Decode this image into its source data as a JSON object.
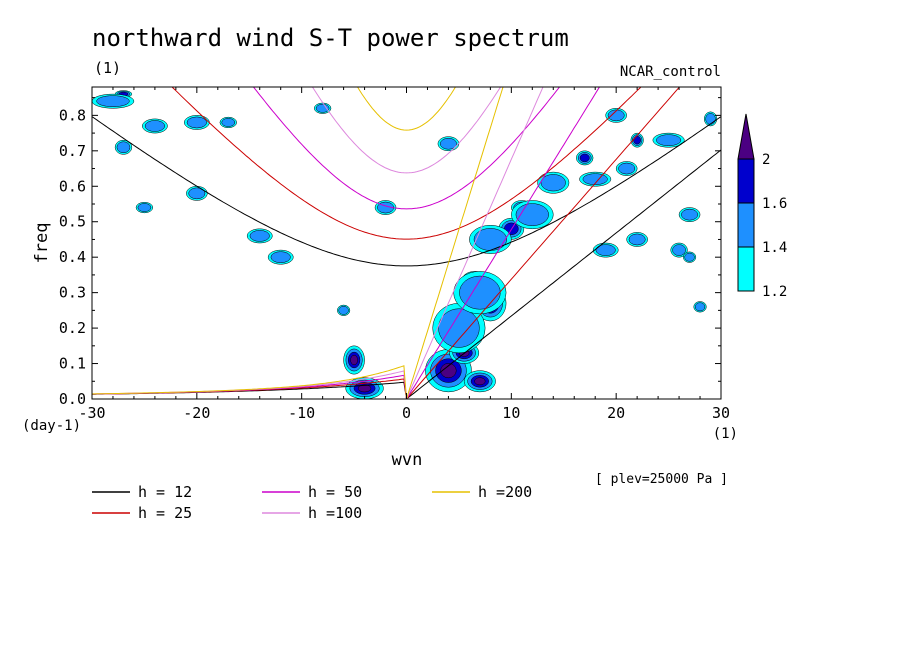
{
  "chart_data": {
    "type": "contour",
    "title": "northward wind S-T power spectrum",
    "subtitle_left": "(1)",
    "subtitle_right": "NCAR_control",
    "xlabel": "wvn",
    "ylabel": "freq",
    "x_units": "(1)",
    "y_units": "(day-1)",
    "xlim": [
      -30,
      30
    ],
    "ylim": [
      0,
      0.88
    ],
    "x_ticks": [
      -30,
      -20,
      -10,
      0,
      10,
      20,
      30
    ],
    "x_tick_labels": [
      "-30",
      "-20",
      "-10",
      "0",
      "10",
      "20",
      "30"
    ],
    "y_ticks": [
      0,
      0.1,
      0.2,
      0.3,
      0.4,
      0.5,
      0.6,
      0.7,
      0.8
    ],
    "y_tick_labels": [
      "0.0",
      "0.1",
      "0.2",
      "0.3",
      "0.4",
      "0.5",
      "0.6",
      "0.7",
      "0.8"
    ],
    "annotation": "[ plev=25000 Pa ]",
    "colorbar": {
      "levels": [
        1.2,
        1.4,
        1.6,
        2
      ],
      "labels": [
        "1.2",
        "1.4",
        "1.6",
        "2"
      ],
      "colors": [
        "#00ffff",
        "#1e90ff",
        "#0000cd",
        "#4b0082"
      ]
    },
    "dispersion_curves": [
      {
        "name": "h = 12",
        "h": 12,
        "color": "#000000"
      },
      {
        "name": "h = 25",
        "h": 25,
        "color": "#cc0000"
      },
      {
        "name": "h = 50",
        "h": 50,
        "color": "#cc00cc"
      },
      {
        "name": "h =100",
        "h": 100,
        "color": "#dd88dd"
      },
      {
        "name": "h =200",
        "h": 200,
        "color": "#e6c000"
      }
    ],
    "contour_blobs": [
      {
        "x": -5,
        "y": 0.11,
        "rx": 1.0,
        "ry": 0.04,
        "level": 3
      },
      {
        "x": -4,
        "y": 0.03,
        "rx": 1.8,
        "ry": 0.03,
        "level": 3
      },
      {
        "x": 4,
        "y": 0.08,
        "rx": 2.2,
        "ry": 0.06,
        "level": 3
      },
      {
        "x": 5.5,
        "y": 0.13,
        "rx": 1.4,
        "ry": 0.03,
        "level": 3
      },
      {
        "x": 7,
        "y": 0.05,
        "rx": 1.5,
        "ry": 0.03,
        "level": 3
      },
      {
        "x": 5.5,
        "y": 0.21,
        "rx": 1.3,
        "ry": 0.05,
        "level": 3
      },
      {
        "x": 8,
        "y": 0.27,
        "rx": 1.5,
        "ry": 0.05,
        "level": 3
      },
      {
        "x": 6.5,
        "y": 0.33,
        "rx": 1.3,
        "ry": 0.03,
        "level": 2
      },
      {
        "x": 10,
        "y": 0.48,
        "rx": 1.2,
        "ry": 0.03,
        "level": 2
      },
      {
        "x": 11,
        "y": 0.54,
        "rx": 1.0,
        "ry": 0.02,
        "level": 2
      },
      {
        "x": 17,
        "y": 0.68,
        "rx": 0.8,
        "ry": 0.02,
        "level": 2
      },
      {
        "x": 22,
        "y": 0.73,
        "rx": 0.6,
        "ry": 0.02,
        "level": 2
      },
      {
        "x": -27,
        "y": 0.86,
        "rx": 0.8,
        "ry": 0.01,
        "level": 2
      },
      {
        "x": 8,
        "y": 0.45,
        "rx": 2.0,
        "ry": 0.04,
        "level": 1
      },
      {
        "x": 12,
        "y": 0.52,
        "rx": 2.0,
        "ry": 0.04,
        "level": 1
      },
      {
        "x": 14,
        "y": 0.61,
        "rx": 1.5,
        "ry": 0.03,
        "level": 1
      },
      {
        "x": 5,
        "y": 0.2,
        "rx": 2.5,
        "ry": 0.07,
        "level": 1
      },
      {
        "x": 7,
        "y": 0.3,
        "rx": 2.5,
        "ry": 0.06,
        "level": 1
      },
      {
        "x": -28,
        "y": 0.84,
        "rx": 2.0,
        "ry": 0.02,
        "level": 1
      },
      {
        "x": -24,
        "y": 0.77,
        "rx": 1.2,
        "ry": 0.02,
        "level": 1
      },
      {
        "x": -20,
        "y": 0.78,
        "rx": 1.2,
        "ry": 0.02,
        "level": 1
      },
      {
        "x": -27,
        "y": 0.71,
        "rx": 0.8,
        "ry": 0.02,
        "level": 1
      },
      {
        "x": -20,
        "y": 0.58,
        "rx": 1.0,
        "ry": 0.02,
        "level": 1
      },
      {
        "x": -25,
        "y": 0.54,
        "rx": 0.8,
        "ry": 0.015,
        "level": 1
      },
      {
        "x": -14,
        "y": 0.46,
        "rx": 1.2,
        "ry": 0.02,
        "level": 1
      },
      {
        "x": -12,
        "y": 0.4,
        "rx": 1.2,
        "ry": 0.02,
        "level": 1
      },
      {
        "x": -2,
        "y": 0.54,
        "rx": 1.0,
        "ry": 0.02,
        "level": 1
      },
      {
        "x": 4,
        "y": 0.72,
        "rx": 1.0,
        "ry": 0.02,
        "level": 1
      },
      {
        "x": 18,
        "y": 0.62,
        "rx": 1.5,
        "ry": 0.02,
        "level": 1
      },
      {
        "x": 21,
        "y": 0.65,
        "rx": 1.0,
        "ry": 0.02,
        "level": 1
      },
      {
        "x": 25,
        "y": 0.73,
        "rx": 1.5,
        "ry": 0.02,
        "level": 1
      },
      {
        "x": 27,
        "y": 0.52,
        "rx": 1.0,
        "ry": 0.02,
        "level": 1
      },
      {
        "x": 22,
        "y": 0.45,
        "rx": 1.0,
        "ry": 0.02,
        "level": 1
      },
      {
        "x": 26,
        "y": 0.42,
        "rx": 0.8,
        "ry": 0.02,
        "level": 1
      },
      {
        "x": 20,
        "y": 0.8,
        "rx": 1.0,
        "ry": 0.02,
        "level": 1
      },
      {
        "x": 29,
        "y": 0.79,
        "rx": 0.6,
        "ry": 0.02,
        "level": 1
      },
      {
        "x": -6,
        "y": 0.25,
        "rx": 0.6,
        "ry": 0.015,
        "level": 1
      },
      {
        "x": -17,
        "y": 0.78,
        "rx": 0.8,
        "ry": 0.015,
        "level": 1
      },
      {
        "x": -8,
        "y": 0.82,
        "rx": 0.8,
        "ry": 0.015,
        "level": 1
      },
      {
        "x": 28,
        "y": 0.26,
        "rx": 0.6,
        "ry": 0.015,
        "level": 1
      },
      {
        "x": 19,
        "y": 0.42,
        "rx": 1.2,
        "ry": 0.02,
        "level": 1
      },
      {
        "x": 27,
        "y": 0.4,
        "rx": 0.6,
        "ry": 0.015,
        "level": 1
      }
    ]
  }
}
